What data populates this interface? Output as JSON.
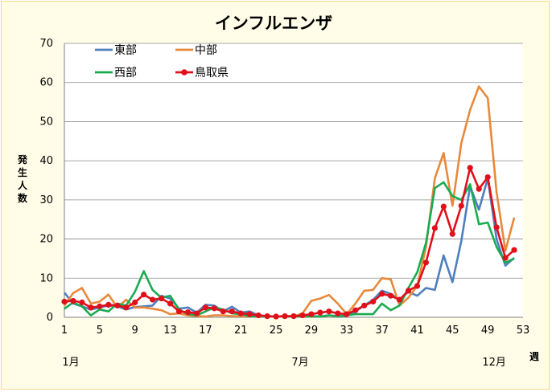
{
  "chart_data": {
    "type": "line",
    "title": "インフルエンザ",
    "ylabel": [
      "発",
      "生",
      "人",
      "数"
    ],
    "xlabel_unit": "週",
    "ylim": [
      0,
      70
    ],
    "yticks": [
      0,
      10,
      20,
      30,
      40,
      50,
      60,
      70
    ],
    "xlim": [
      1,
      53
    ],
    "xticks": [
      1,
      5,
      9,
      13,
      17,
      21,
      25,
      29,
      33,
      37,
      41,
      45,
      49,
      53
    ],
    "month_labels": [
      {
        "label": "1月",
        "week": 1
      },
      {
        "label": "7月",
        "week": 27
      },
      {
        "label": "12月",
        "week": 49
      }
    ],
    "legend": {
      "placement": "top-left",
      "columns": 2
    },
    "x": [
      1,
      2,
      3,
      4,
      5,
      6,
      7,
      8,
      9,
      10,
      11,
      12,
      13,
      14,
      15,
      16,
      17,
      18,
      19,
      20,
      21,
      22,
      23,
      24,
      25,
      26,
      27,
      28,
      29,
      30,
      31,
      32,
      33,
      34,
      35,
      36,
      37,
      38,
      39,
      40,
      41,
      42,
      43,
      44,
      45,
      46,
      47,
      48,
      49,
      50,
      51,
      52
    ],
    "series": [
      {
        "name": "東部",
        "color": "#4f7fbf",
        "marker": false,
        "values": [
          6.3,
          3.5,
          2.8,
          2.0,
          2.5,
          3.0,
          2.8,
          2.0,
          2.6,
          2.8,
          3.0,
          5.5,
          4.8,
          2.2,
          2.5,
          1.2,
          3.2,
          3.0,
          1.5,
          2.7,
          1.2,
          1.5,
          0.5,
          0.3,
          0.2,
          0.3,
          0.2,
          0.2,
          0.3,
          0.2,
          0.5,
          0.3,
          0.3,
          1.5,
          3.0,
          4.5,
          6.8,
          6.0,
          4.5,
          6.5,
          5.5,
          7.5,
          7.0,
          15.8,
          9.0,
          19.5,
          33.5,
          27.5,
          35.5,
          20.0,
          13.2,
          15.2
        ]
      },
      {
        "name": "中部",
        "color": "#e8893a",
        "marker": false,
        "values": [
          3.0,
          6.2,
          7.5,
          3.5,
          4.0,
          5.8,
          2.5,
          4.5,
          2.5,
          2.5,
          2.2,
          1.8,
          0.8,
          1.0,
          0.5,
          0.3,
          0.2,
          0.5,
          0.5,
          0.3,
          0.3,
          0.3,
          0.3,
          0.2,
          0.2,
          0.3,
          0.2,
          1.0,
          4.2,
          4.8,
          5.7,
          3.5,
          0.8,
          3.5,
          6.8,
          7.0,
          10.0,
          9.7,
          3.0,
          5.0,
          8.0,
          18.0,
          35.5,
          42.0,
          28.5,
          44.5,
          53.0,
          59.0,
          56.0,
          32.0,
          17.0,
          25.5
        ]
      },
      {
        "name": "西部",
        "color": "#1aab50",
        "marker": false,
        "values": [
          2.2,
          3.8,
          2.8,
          0.5,
          2.0,
          1.5,
          3.5,
          3.0,
          6.5,
          11.8,
          7.0,
          5.0,
          5.5,
          2.0,
          0.8,
          0.5,
          1.5,
          2.5,
          2.0,
          1.0,
          0.8,
          0.3,
          0.2,
          0.3,
          0.2,
          0.3,
          0.2,
          0.3,
          0.2,
          0.2,
          0.5,
          0.3,
          0.5,
          0.8,
          0.8,
          0.8,
          3.5,
          1.8,
          3.0,
          7.5,
          11.5,
          19.0,
          33.0,
          34.5,
          31.0,
          30.0,
          34.0,
          23.8,
          24.2,
          18.0,
          14.0,
          15.0
        ]
      },
      {
        "name": "鳥取県",
        "color": "#e0101a",
        "marker": true,
        "values": [
          4.0,
          4.2,
          3.8,
          2.5,
          2.8,
          3.2,
          3.0,
          2.5,
          3.8,
          5.8,
          4.5,
          4.8,
          3.5,
          1.5,
          1.3,
          1.0,
          2.5,
          2.3,
          1.5,
          1.5,
          1.0,
          0.8,
          0.5,
          0.3,
          0.2,
          0.3,
          0.3,
          0.5,
          0.8,
          1.2,
          1.5,
          1.0,
          0.8,
          1.8,
          3.0,
          4.0,
          6.0,
          5.5,
          4.5,
          6.8,
          8.0,
          14.0,
          22.8,
          28.3,
          21.3,
          28.5,
          38.2,
          32.8,
          35.8,
          23.0,
          15.2,
          17.2
        ]
      }
    ]
  }
}
